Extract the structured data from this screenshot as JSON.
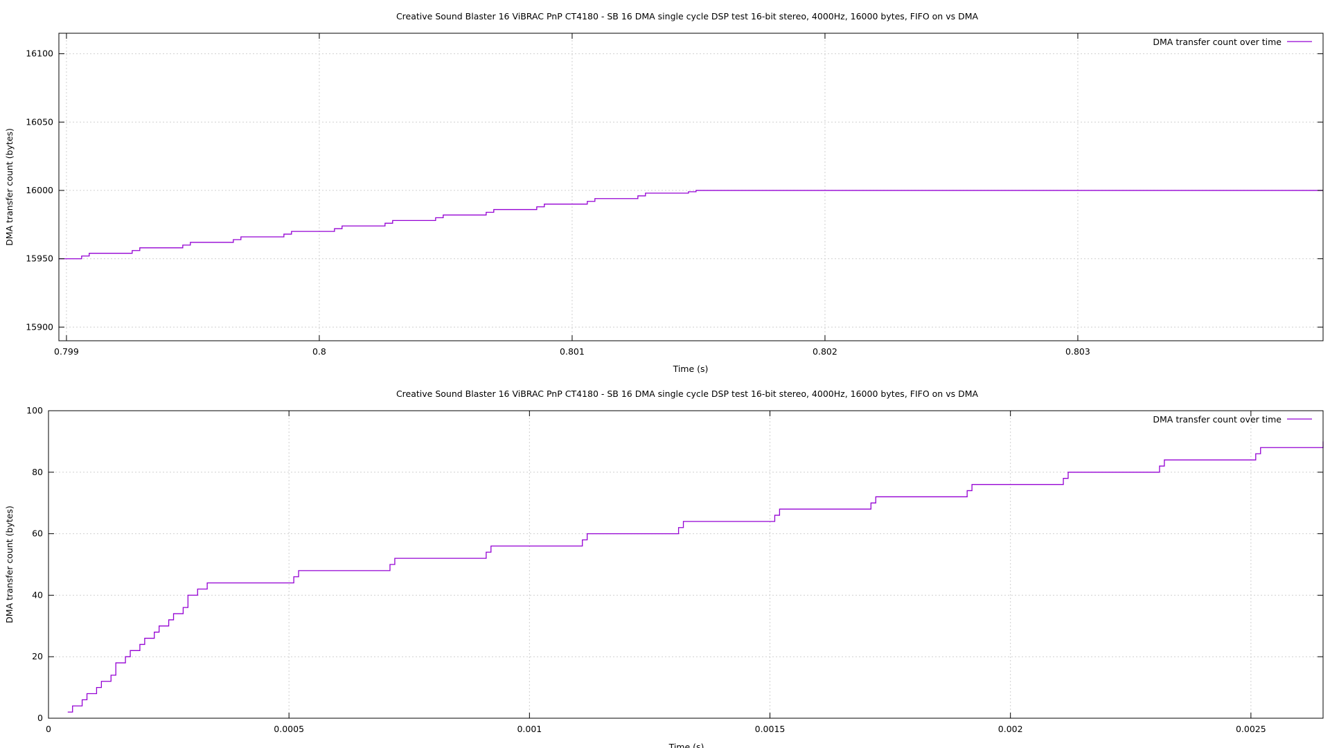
{
  "colors": {
    "series": "#9400d3",
    "grid": "#cfcfcf",
    "axis": "#000000",
    "background": "#ffffff"
  },
  "chart_data": [
    {
      "type": "line",
      "title": "Creative Sound Blaster 16 ViBRAC PnP CT4180 - SB 16 DMA single cycle DSP test 16-bit stereo, 4000Hz, 16000 bytes, FIFO on vs DMA",
      "xlabel": "Time (s)",
      "ylabel": "DMA transfer count (bytes)",
      "xlim": [
        0.79897,
        0.80397
      ],
      "ylim": [
        15890,
        16115
      ],
      "xticks": [
        0.799,
        0.8,
        0.801,
        0.802,
        0.803
      ],
      "xtick_labels": [
        "0.799",
        "0.8",
        "0.801",
        "0.802",
        "0.803"
      ],
      "yticks": [
        15900,
        15950,
        16000,
        16050,
        16100
      ],
      "ytick_labels": [
        "15900",
        "15950",
        "16000",
        "16050",
        "16100"
      ],
      "grid": true,
      "legend_position": "top-right",
      "step": true,
      "series": [
        {
          "name": "DMA transfer count over time",
          "x": [
            0.79897,
            0.79906,
            0.79909,
            0.79926,
            0.79929,
            0.79946,
            0.79949,
            0.79966,
            0.79969,
            0.79986,
            0.79989,
            0.80006,
            0.80009,
            0.80026,
            0.80029,
            0.80046,
            0.80049,
            0.80066,
            0.80069,
            0.80086,
            0.80089,
            0.80106,
            0.80109,
            0.80126,
            0.80129,
            0.80146,
            0.80149,
            0.80397
          ],
          "y": [
            15950,
            15952,
            15954,
            15956,
            15958,
            15960,
            15962,
            15964,
            15966,
            15968,
            15970,
            15972,
            15974,
            15976,
            15978,
            15980,
            15982,
            15984,
            15986,
            15988,
            15990,
            15992,
            15994,
            15996,
            15998,
            15999,
            16000,
            16000
          ]
        }
      ]
    },
    {
      "type": "line",
      "title": "Creative Sound Blaster 16 ViBRAC PnP CT4180 - SB 16 DMA single cycle DSP test 16-bit stereo, 4000Hz, 16000 bytes, FIFO on vs DMA",
      "xlabel": "Time (s)",
      "ylabel": "DMA transfer count (bytes)",
      "xlim": [
        0,
        0.00265
      ],
      "ylim": [
        0,
        100
      ],
      "xticks": [
        0,
        0.0005,
        0.001,
        0.0015,
        0.002,
        0.0025
      ],
      "xtick_labels": [
        "0",
        "0.0005",
        "0.001",
        "0.0015",
        "0.002",
        "0.0025"
      ],
      "yticks": [
        0,
        20,
        40,
        60,
        80,
        100
      ],
      "ytick_labels": [
        "0",
        "20",
        "40",
        "60",
        "80",
        "100"
      ],
      "grid": true,
      "legend_position": "top-right",
      "step": true,
      "series": [
        {
          "name": "DMA transfer count over time",
          "x": [
            4e-05,
            5e-05,
            7e-05,
            8e-05,
            0.0001,
            0.00011,
            0.00013,
            0.00014,
            0.00016,
            0.00017,
            0.00019,
            0.0002,
            0.00022,
            0.00023,
            0.00025,
            0.00026,
            0.00028,
            0.00029,
            0.00031,
            0.00033,
            0.00051,
            0.00052,
            0.00071,
            0.00072,
            0.00091,
            0.00092,
            0.00111,
            0.00112,
            0.00131,
            0.00132,
            0.00151,
            0.00152,
            0.00171,
            0.00172,
            0.00191,
            0.00192,
            0.00211,
            0.00212,
            0.00231,
            0.00232,
            0.00251,
            0.00252,
            0.00265
          ],
          "y": [
            2,
            4,
            6,
            8,
            10,
            12,
            14,
            18,
            20,
            22,
            24,
            26,
            28,
            30,
            32,
            34,
            36,
            40,
            42,
            44,
            46,
            48,
            50,
            52,
            54,
            56,
            58,
            60,
            62,
            64,
            66,
            68,
            70,
            72,
            74,
            76,
            78,
            80,
            82,
            84,
            86,
            88,
            90
          ]
        }
      ]
    }
  ]
}
